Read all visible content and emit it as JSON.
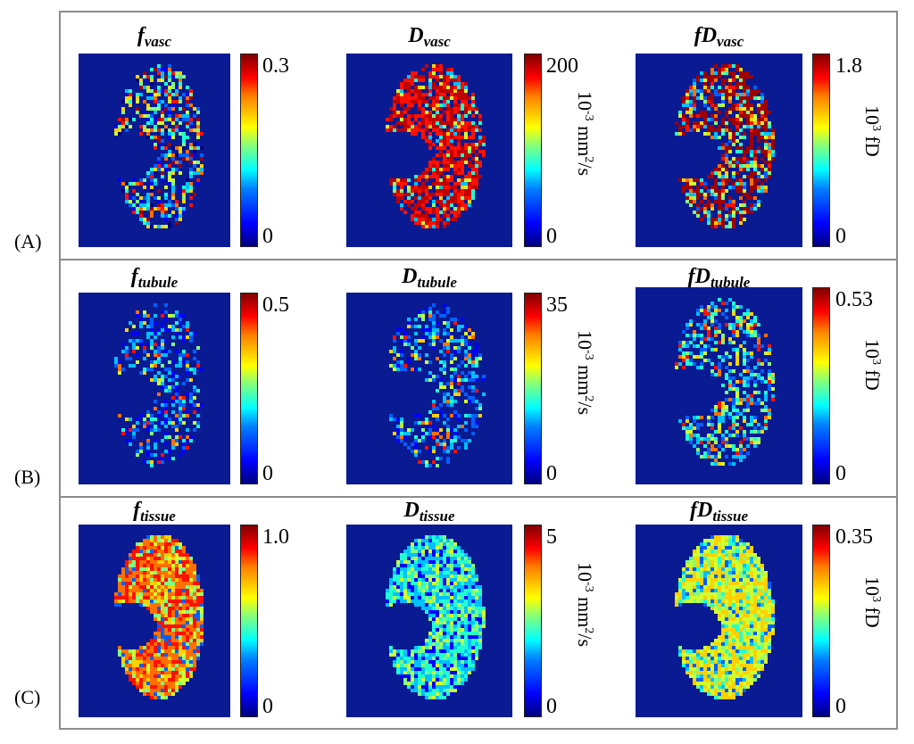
{
  "rows": [
    {
      "label": "(A)",
      "panels": [
        {
          "name": "f",
          "sub": "vasc",
          "max": "0.3",
          "min": "0",
          "unit": null,
          "style": "speckle-ring"
        },
        {
          "name": "D",
          "sub": "vasc",
          "max": "200",
          "min": "0",
          "unit": {
            "base": "10",
            "exp": "-3",
            "rest": " mm",
            "exp2": "2",
            "tail": "/s"
          },
          "style": "red-dense"
        },
        {
          "name": "fD",
          "sub": "vasc",
          "max": "1.8",
          "min": "0",
          "unit": {
            "base": "10",
            "exp": "3",
            "rest": " fD",
            "exp2": "",
            "tail": ""
          },
          "style": "red-mixed"
        }
      ]
    },
    {
      "label": "(B)",
      "panels": [
        {
          "name": "f",
          "sub": "tubule",
          "max": "0.5",
          "min": "0",
          "unit": null,
          "style": "blue-sparse"
        },
        {
          "name": "D",
          "sub": "tubule",
          "max": "35",
          "min": "0",
          "unit": {
            "base": "10",
            "exp": "-3",
            "rest": " mm",
            "exp2": "2",
            "tail": "/s"
          },
          "style": "blue-sparse"
        },
        {
          "name": "fD",
          "sub": "tubule",
          "max": "0.53",
          "min": "0",
          "unit": {
            "base": "10",
            "exp": "3",
            "rest": " fD",
            "exp2": "",
            "tail": ""
          },
          "style": "cyan-sparse"
        }
      ]
    },
    {
      "label": "(C)",
      "panels": [
        {
          "name": "f",
          "sub": "tissue",
          "max": "1.0",
          "min": "0",
          "unit": null,
          "style": "orange-full"
        },
        {
          "name": "D",
          "sub": "tissue",
          "max": "5",
          "min": "0",
          "unit": {
            "base": "10",
            "exp": "-3",
            "rest": " mm",
            "exp2": "2",
            "tail": "/s"
          },
          "style": "cyan-full"
        },
        {
          "name": "fD",
          "sub": "tissue",
          "max": "0.35",
          "min": "0",
          "unit": {
            "base": "10",
            "exp": "3",
            "rest": " fD",
            "exp2": "",
            "tail": ""
          },
          "style": "yellow-full"
        }
      ]
    }
  ],
  "colors": {
    "background": "#0a1a92",
    "border": "#8c8c8c"
  }
}
